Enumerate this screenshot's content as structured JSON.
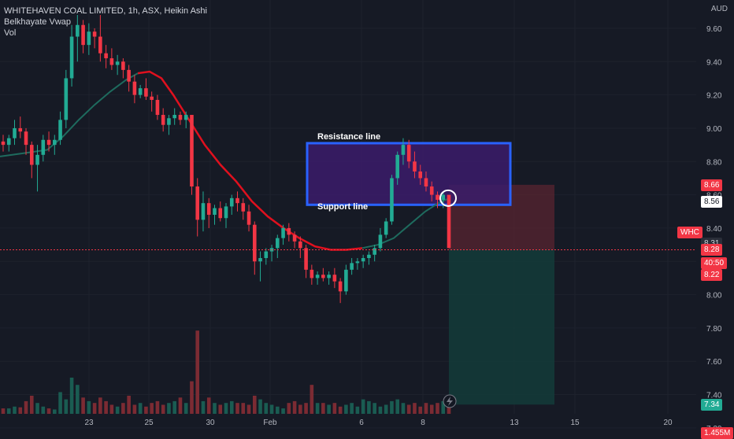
{
  "header": {
    "title": "WHITEHAVEN COAL LIMITED, 1h, ASX, Heikin Ashi",
    "indicator_1": "Belkhayate Vwap",
    "indicator_2": "Vol"
  },
  "currency": "AUD",
  "symbol_tag": "WHC",
  "annotations": {
    "resistance": "Resistance line",
    "support": "Support line"
  },
  "price_axis": {
    "ticks": [
      "9.60",
      "9.40",
      "9.20",
      "9.00",
      "8.80",
      "8.60",
      "8.40",
      "8.20",
      "8.00",
      "7.80",
      "7.60",
      "7.40",
      "7.20"
    ],
    "tick_values": [
      9.6,
      9.4,
      9.2,
      9.0,
      8.8,
      8.6,
      8.4,
      8.2,
      8.0,
      7.8,
      7.6,
      7.4,
      7.2
    ],
    "range": [
      7.19,
      9.77
    ]
  },
  "price_tags": [
    {
      "label": "8.66",
      "value": 8.66,
      "color": "#f23645",
      "text_color": "#ffffff"
    },
    {
      "label": "8.56",
      "value": 8.56,
      "color": "#ffffff",
      "text_color": "#131722"
    },
    {
      "label": "8.31",
      "value": 8.31,
      "color": "#2a2e39",
      "text_color": "#d1d4dc"
    },
    {
      "label": "8.28",
      "value": 8.27,
      "color": "#f23645",
      "text_color": "#ffffff"
    },
    {
      "label": "40:50",
      "value": 8.19,
      "color": "#f23645",
      "text_color": "#ffffff"
    },
    {
      "label": "8.22",
      "value": 8.12,
      "color": "#f23645",
      "text_color": "#ffffff"
    },
    {
      "label": "7.34",
      "value": 7.34,
      "color": "#22ab94",
      "text_color": "#ffffff"
    },
    {
      "label": "1.455M",
      "value": 7.17,
      "color": "#f23645",
      "text_color": "#ffffff"
    }
  ],
  "time_axis": {
    "labels": [
      "23",
      "25",
      "30",
      "Feb",
      "6",
      "8",
      "13",
      "15",
      "20"
    ],
    "positions": [
      113,
      189,
      267,
      343,
      459,
      537,
      653,
      730,
      848
    ]
  },
  "colors": {
    "up": "#22ab94",
    "down": "#f23645",
    "vwap_up": "#1e6b5e",
    "vwap_down": "#e0101e",
    "box_stroke": "#2962ff",
    "box_fill": "#3b1c6b",
    "short_loss": "#5c2530",
    "short_profit": "#133a39"
  },
  "chart_data": {
    "type": "candlestick",
    "candles_ohlc": [
      [
        8.92,
        8.96,
        8.86,
        8.9,
        1
      ],
      [
        8.9,
        8.96,
        8.86,
        8.94,
        1
      ],
      [
        8.94,
        9.05,
        8.9,
        9.0,
        1
      ],
      [
        9.0,
        9.07,
        8.94,
        8.98,
        1
      ],
      [
        8.98,
        9.0,
        8.84,
        8.9,
        1
      ],
      [
        8.9,
        8.92,
        8.7,
        8.78,
        1
      ],
      [
        8.78,
        8.9,
        8.62,
        8.84,
        1
      ],
      [
        8.84,
        8.96,
        8.8,
        8.93,
        1
      ],
      [
        8.93,
        8.98,
        8.86,
        8.9,
        1
      ],
      [
        8.9,
        8.96,
        8.84,
        8.93,
        1
      ],
      [
        8.93,
        9.1,
        8.9,
        9.05,
        1
      ],
      [
        9.05,
        9.35,
        9.0,
        9.3,
        1
      ],
      [
        9.3,
        9.62,
        9.25,
        9.55,
        1
      ],
      [
        9.55,
        9.68,
        9.4,
        9.62,
        1
      ],
      [
        9.62,
        9.65,
        9.45,
        9.5,
        1
      ],
      [
        9.5,
        9.63,
        9.44,
        9.58,
        1
      ],
      [
        9.58,
        9.6,
        9.48,
        9.55,
        1
      ],
      [
        9.55,
        9.68,
        9.4,
        9.45,
        1
      ],
      [
        9.45,
        9.5,
        9.36,
        9.42,
        1
      ],
      [
        9.42,
        9.48,
        9.35,
        9.38,
        1
      ],
      [
        9.38,
        9.44,
        9.32,
        9.4,
        1
      ],
      [
        9.4,
        9.42,
        9.3,
        9.35,
        1
      ],
      [
        9.35,
        9.38,
        9.22,
        9.28,
        1
      ],
      [
        9.28,
        9.32,
        9.15,
        9.2,
        1
      ],
      [
        9.2,
        9.26,
        9.18,
        9.24,
        1
      ],
      [
        9.24,
        9.3,
        9.17,
        9.19,
        1
      ],
      [
        9.19,
        9.22,
        9.1,
        9.17,
        1
      ],
      [
        9.17,
        9.2,
        9.05,
        9.08,
        1
      ],
      [
        9.08,
        9.12,
        8.98,
        9.02,
        1
      ],
      [
        9.02,
        9.08,
        8.96,
        9.06,
        1
      ],
      [
        9.06,
        9.12,
        9.02,
        9.08,
        1
      ],
      [
        9.08,
        9.1,
        9.02,
        9.05,
        1
      ],
      [
        9.05,
        9.1,
        9.0,
        9.08,
        1
      ],
      [
        9.08,
        9.04,
        8.6,
        8.65,
        1
      ],
      [
        8.65,
        8.7,
        8.35,
        8.45,
        1
      ],
      [
        8.45,
        8.62,
        8.38,
        8.55,
        1
      ],
      [
        8.55,
        8.58,
        8.4,
        8.48,
        1
      ],
      [
        8.48,
        8.54,
        8.42,
        8.52,
        1
      ],
      [
        8.52,
        8.56,
        8.44,
        8.46,
        1
      ],
      [
        8.46,
        8.55,
        8.4,
        8.53,
        1
      ],
      [
        8.53,
        8.6,
        8.48,
        8.58,
        1
      ],
      [
        8.58,
        8.62,
        8.5,
        8.55,
        1
      ],
      [
        8.55,
        8.58,
        8.45,
        8.5,
        1
      ],
      [
        8.5,
        8.54,
        8.38,
        8.42,
        1
      ],
      [
        8.42,
        8.44,
        8.12,
        8.2,
        1
      ],
      [
        8.2,
        8.26,
        8.08,
        8.22,
        1
      ],
      [
        8.22,
        8.28,
        8.18,
        8.26,
        1
      ],
      [
        8.26,
        8.3,
        8.2,
        8.28,
        1
      ],
      [
        8.28,
        8.36,
        8.22,
        8.34,
        1
      ],
      [
        8.34,
        8.42,
        8.3,
        8.4,
        1
      ],
      [
        8.4,
        8.43,
        8.32,
        8.36,
        1
      ],
      [
        8.36,
        8.38,
        8.28,
        8.32,
        1
      ],
      [
        8.32,
        8.35,
        8.22,
        8.28,
        1
      ],
      [
        8.28,
        8.3,
        8.1,
        8.15,
        1
      ],
      [
        8.15,
        8.18,
        8.06,
        8.1,
        1
      ],
      [
        8.1,
        8.14,
        8.06,
        8.12,
        1
      ],
      [
        8.12,
        8.16,
        8.08,
        8.1,
        1
      ],
      [
        8.1,
        8.14,
        8.06,
        8.12,
        1
      ],
      [
        8.12,
        8.16,
        8.04,
        8.08,
        1
      ],
      [
        8.08,
        8.1,
        7.95,
        8.02,
        1
      ],
      [
        8.02,
        8.18,
        8.0,
        8.15,
        1
      ],
      [
        8.15,
        8.22,
        8.12,
        8.19,
        1
      ],
      [
        8.19,
        8.22,
        8.15,
        8.2,
        1
      ],
      [
        8.2,
        8.24,
        8.16,
        8.22,
        1
      ],
      [
        8.22,
        8.26,
        8.18,
        8.24,
        1
      ],
      [
        8.24,
        8.3,
        8.2,
        8.28,
        1
      ],
      [
        8.28,
        8.4,
        8.26,
        8.36,
        1
      ],
      [
        8.36,
        8.46,
        8.34,
        8.44,
        1
      ],
      [
        8.44,
        8.72,
        8.42,
        8.7,
        1
      ],
      [
        8.7,
        8.86,
        8.66,
        8.84,
        1
      ],
      [
        8.84,
        8.94,
        8.78,
        8.9,
        1
      ],
      [
        8.9,
        8.93,
        8.76,
        8.8,
        1
      ],
      [
        8.8,
        8.86,
        8.7,
        8.74,
        1
      ],
      [
        8.74,
        8.78,
        8.66,
        8.7,
        1
      ],
      [
        8.7,
        8.74,
        8.62,
        8.65,
        1
      ],
      [
        8.65,
        8.68,
        8.56,
        8.6,
        1
      ],
      [
        8.6,
        8.62,
        8.52,
        8.57,
        1
      ],
      [
        8.57,
        8.62,
        8.52,
        8.6,
        1
      ],
      [
        8.6,
        8.58,
        8.28,
        8.28,
        1
      ]
    ],
    "volume_bars_approx": [
      0.15,
      0.15,
      0.2,
      0.18,
      0.35,
      0.5,
      0.3,
      0.2,
      0.15,
      0.12,
      0.6,
      0.4,
      1.0,
      0.8,
      0.45,
      0.35,
      0.3,
      0.45,
      0.35,
      0.25,
      0.2,
      0.3,
      0.5,
      0.25,
      0.3,
      0.2,
      0.3,
      0.35,
      0.25,
      0.3,
      0.35,
      0.45,
      0.3,
      0.9,
      2.3,
      0.35,
      0.45,
      0.3,
      0.25,
      0.3,
      0.35,
      0.3,
      0.3,
      0.25,
      0.5,
      0.4,
      0.3,
      0.25,
      0.2,
      0.15,
      0.3,
      0.35,
      0.25,
      0.3,
      0.8,
      0.3,
      0.3,
      0.25,
      0.3,
      0.2,
      0.25,
      0.3,
      0.2,
      0.4,
      0.35,
      0.3,
      0.2,
      0.25,
      0.35,
      0.4,
      0.3,
      0.25,
      0.3,
      0.2,
      0.3,
      0.25,
      0.3,
      0.35,
      0.4
    ]
  }
}
